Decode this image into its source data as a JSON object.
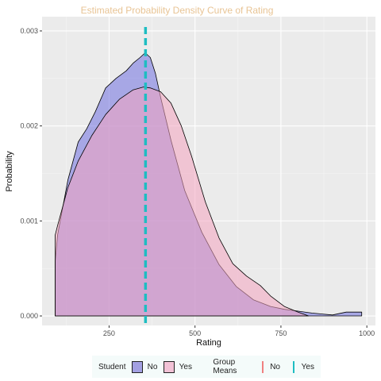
{
  "chart_data": {
    "type": "area",
    "title": "Estimated Probability Density Curve of Rating",
    "xlabel": "Rating",
    "ylabel": "Probability",
    "xlim": [
      55,
      1025
    ],
    "ylim": [
      -0.0001,
      0.00315
    ],
    "x_ticks": [
      250,
      500,
      750,
      1000
    ],
    "x_tick_labels": [
      "250",
      "500",
      "750",
      "1000"
    ],
    "y_ticks": [
      0.0,
      0.001,
      0.002,
      0.003
    ],
    "y_tick_labels": [
      "0.000",
      "0.001",
      "0.002",
      "0.003"
    ],
    "grid": true,
    "legend_position": "bottom",
    "series": [
      {
        "name": "No",
        "color": "#6f6fe0",
        "x": [
          93,
          100,
          130,
          160,
          185,
          210,
          240,
          270,
          300,
          320,
          340,
          355,
          370,
          385,
          400,
          430,
          470,
          520,
          570,
          620,
          670,
          720,
          760,
          800,
          840,
          870,
          900,
          940,
          985
        ],
        "y": [
          0.00057,
          0.00085,
          0.00143,
          0.00183,
          0.00197,
          0.00215,
          0.0024,
          0.0025,
          0.00258,
          0.00266,
          0.00272,
          0.00277,
          0.00272,
          0.00255,
          0.0023,
          0.00185,
          0.00132,
          0.00088,
          0.00054,
          0.00031,
          0.00017,
          0.0001,
          7e-05,
          5e-05,
          3e-05,
          2e-05,
          1e-05,
          4e-05,
          4e-05
        ]
      },
      {
        "name": "Yes",
        "color": "#f4a4c0",
        "x": [
          93,
          100,
          130,
          160,
          200,
          240,
          280,
          320,
          350,
          370,
          400,
          430,
          460,
          490,
          530,
          570,
          610,
          650,
          690,
          720,
          760,
          800,
          830
        ],
        "y": [
          0.00085,
          0.00095,
          0.00135,
          0.00163,
          0.0019,
          0.00212,
          0.00228,
          0.00238,
          0.00241,
          0.0024,
          0.00236,
          0.00224,
          0.002,
          0.00168,
          0.0012,
          0.00082,
          0.00055,
          0.00042,
          0.00032,
          0.00021,
          0.0001,
          4e-05,
          0.0
        ]
      }
    ],
    "group_means": [
      {
        "name": "No",
        "x": 356,
        "color": "#f08080"
      },
      {
        "name": "Yes",
        "x": 356,
        "color": "#1ebdc2"
      }
    ]
  },
  "legend": {
    "fill_title": "Student",
    "fill_items": [
      {
        "label": "No",
        "color": "#a3a0e2"
      },
      {
        "label": "Yes",
        "color": "#f2c2d6"
      }
    ],
    "line_title": "Group Means",
    "line_items": [
      {
        "label": "No",
        "color": "#f08080"
      },
      {
        "label": "Yes",
        "color": "#1ebdc2"
      }
    ]
  }
}
